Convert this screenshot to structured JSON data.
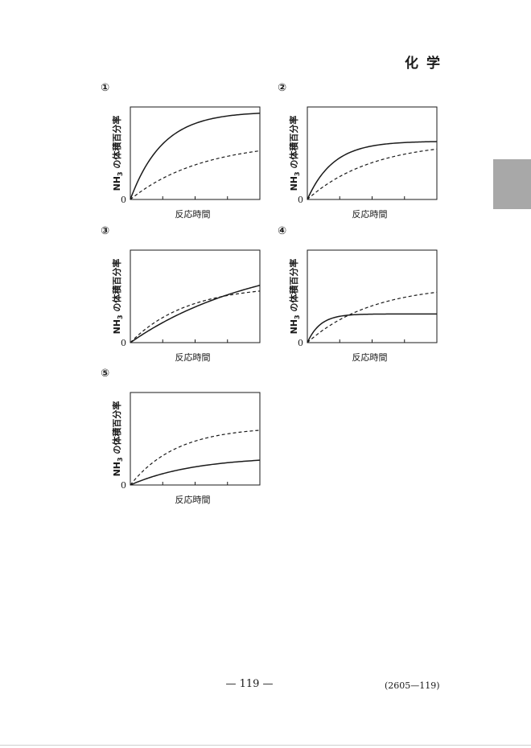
{
  "header": {
    "subject": "化学"
  },
  "footer": {
    "page_number": "— 119 —",
    "page_code": "(2605—119)"
  },
  "chart_data": [
    {
      "type": "line",
      "marker": "①",
      "xlabel": "反応時間",
      "ylabel_main": "NH",
      "ylabel_sub": "3",
      "ylabel_rest": " の体積百分率",
      "origin": "0",
      "series": [
        {
          "style": "solid",
          "plateau": 0.95,
          "rate": 4.0
        },
        {
          "style": "dashed",
          "plateau": 0.63,
          "rate": 1.8
        }
      ]
    },
    {
      "type": "line",
      "marker": "②",
      "xlabel": "反応時間",
      "ylabel_main": "NH",
      "ylabel_sub": "3",
      "ylabel_rest": " の体積百分率",
      "origin": "0",
      "series": [
        {
          "style": "solid",
          "plateau": 0.63,
          "rate": 5.0
        },
        {
          "style": "dashed",
          "plateau": 0.63,
          "rate": 2.0
        }
      ]
    },
    {
      "type": "line",
      "marker": "③",
      "xlabel": "反応時間",
      "ylabel_main": "NH",
      "ylabel_sub": "3",
      "ylabel_rest": " の体積百分率",
      "origin": "0",
      "series": [
        {
          "style": "solid",
          "plateau": 0.98,
          "rate": 1.0
        },
        {
          "style": "dashed",
          "plateau": 0.62,
          "rate": 2.3
        }
      ]
    },
    {
      "type": "line",
      "marker": "④",
      "xlabel": "反応時間",
      "ylabel_main": "NH",
      "ylabel_sub": "3",
      "ylabel_rest": " の体積百分率",
      "origin": "0",
      "series": [
        {
          "style": "solid",
          "plateau": 0.31,
          "rate": 10.0
        },
        {
          "style": "dashed",
          "plateau": 0.63,
          "rate": 2.0
        }
      ]
    },
    {
      "type": "line",
      "marker": "⑤",
      "xlabel": "反応時間",
      "ylabel_main": "NH",
      "ylabel_sub": "3",
      "ylabel_rest": " の体積百分率",
      "origin": "0",
      "series": [
        {
          "style": "solid",
          "plateau": 0.31,
          "rate": 2.0
        },
        {
          "style": "dashed",
          "plateau": 0.63,
          "rate": 2.8
        }
      ]
    }
  ]
}
